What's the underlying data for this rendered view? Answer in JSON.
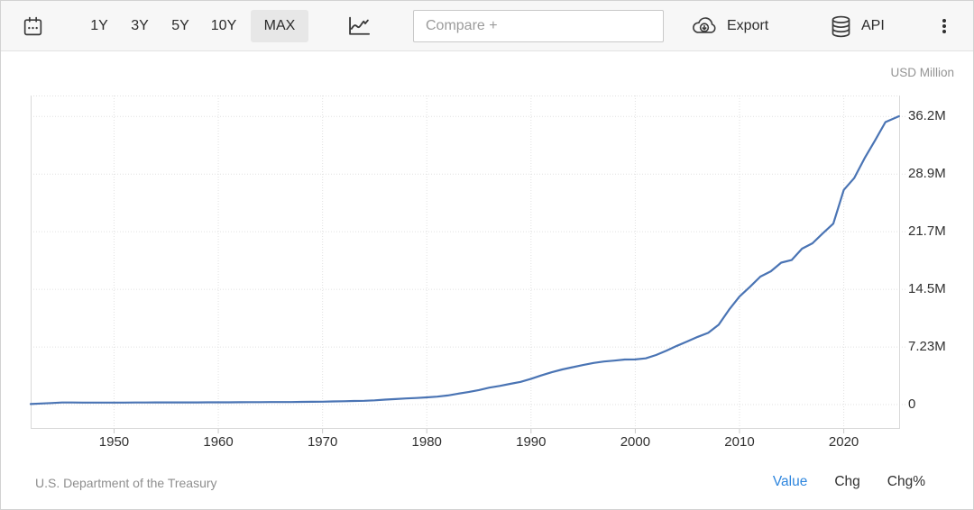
{
  "toolbar": {
    "ranges": [
      {
        "label": "1Y",
        "active": false
      },
      {
        "label": "3Y",
        "active": false
      },
      {
        "label": "5Y",
        "active": false
      },
      {
        "label": "10Y",
        "active": false
      },
      {
        "label": "MAX",
        "active": true
      }
    ],
    "compare_placeholder": "Compare +",
    "export_label": "Export",
    "api_label": "API"
  },
  "footer": {
    "source": "U.S. Department of the Treasury",
    "links": [
      {
        "label": "Value",
        "active": true
      },
      {
        "label": "Chg",
        "active": false
      },
      {
        "label": "Chg%",
        "active": false
      }
    ]
  },
  "chart_data": {
    "type": "line",
    "unit": "USD Million",
    "source": "U.S. Department of the Treasury",
    "line_color": "#4a74b4",
    "grid": "dotted",
    "grid_color": "#e1e1e1",
    "axis_color": "#d9d9d9",
    "tick_color": "#c9c9c9",
    "legend_position": "none",
    "xlim": [
      1942,
      2025.4
    ],
    "ylim": [
      -3050000,
      38800000
    ],
    "xticks": [
      {
        "v": 1950,
        "label": "1950"
      },
      {
        "v": 1960,
        "label": "1960"
      },
      {
        "v": 1970,
        "label": "1970"
      },
      {
        "v": 1980,
        "label": "1980"
      },
      {
        "v": 1990,
        "label": "1990"
      },
      {
        "v": 2000,
        "label": "2000"
      },
      {
        "v": 2010,
        "label": "2010"
      },
      {
        "v": 2020,
        "label": "2020"
      }
    ],
    "yticks": [
      {
        "v": 0,
        "label": "0"
      },
      {
        "v": 7230000,
        "label": "7.23M"
      },
      {
        "v": 14470000,
        "label": "14.5M"
      },
      {
        "v": 21700000,
        "label": "21.7M"
      },
      {
        "v": 28930000,
        "label": "28.9M"
      },
      {
        "v": 36170000,
        "label": "36.2M"
      }
    ],
    "series": [
      [
        1942,
        72400
      ],
      [
        1943,
        136700
      ],
      [
        1944,
        201000
      ],
      [
        1945,
        258700
      ],
      [
        1946,
        269400
      ],
      [
        1947,
        258300
      ],
      [
        1948,
        252300
      ],
      [
        1949,
        252800
      ],
      [
        1950,
        257400
      ],
      [
        1951,
        255200
      ],
      [
        1952,
        259100
      ],
      [
        1953,
        266000
      ],
      [
        1954,
        271300
      ],
      [
        1955,
        274400
      ],
      [
        1956,
        272800
      ],
      [
        1957,
        270500
      ],
      [
        1958,
        276300
      ],
      [
        1959,
        284700
      ],
      [
        1960,
        286300
      ],
      [
        1961,
        289000
      ],
      [
        1962,
        298200
      ],
      [
        1963,
        305900
      ],
      [
        1964,
        311700
      ],
      [
        1965,
        317300
      ],
      [
        1966,
        319900
      ],
      [
        1967,
        326200
      ],
      [
        1968,
        347600
      ],
      [
        1969,
        353700
      ],
      [
        1970,
        370900
      ],
      [
        1971,
        398100
      ],
      [
        1972,
        427300
      ],
      [
        1973,
        458100
      ],
      [
        1974,
        475100
      ],
      [
        1975,
        533200
      ],
      [
        1976,
        620400
      ],
      [
        1977,
        698800
      ],
      [
        1978,
        771500
      ],
      [
        1979,
        826500
      ],
      [
        1980,
        907700
      ],
      [
        1981,
        997900
      ],
      [
        1982,
        1142000
      ],
      [
        1983,
        1377200
      ],
      [
        1984,
        1572300
      ],
      [
        1985,
        1823100
      ],
      [
        1986,
        2125300
      ],
      [
        1987,
        2350300
      ],
      [
        1988,
        2602300
      ],
      [
        1989,
        2857400
      ],
      [
        1990,
        3233300
      ],
      [
        1991,
        3665300
      ],
      [
        1992,
        4064600
      ],
      [
        1993,
        4411500
      ],
      [
        1994,
        4692800
      ],
      [
        1995,
        4974000
      ],
      [
        1996,
        5224800
      ],
      [
        1997,
        5413100
      ],
      [
        1998,
        5526200
      ],
      [
        1999,
        5656300
      ],
      [
        2000,
        5674200
      ],
      [
        2001,
        5807500
      ],
      [
        2002,
        6228200
      ],
      [
        2003,
        6783200
      ],
      [
        2004,
        7379100
      ],
      [
        2005,
        7932700
      ],
      [
        2006,
        8507000
      ],
      [
        2007,
        9007700
      ],
      [
        2008,
        10024700
      ],
      [
        2009,
        11909800
      ],
      [
        2010,
        13561600
      ],
      [
        2011,
        14790300
      ],
      [
        2012,
        16066200
      ],
      [
        2013,
        16738200
      ],
      [
        2014,
        17824100
      ],
      [
        2015,
        18150600
      ],
      [
        2016,
        19573400
      ],
      [
        2017,
        20244900
      ],
      [
        2018,
        21516100
      ],
      [
        2019,
        22719400
      ],
      [
        2020,
        26945400
      ],
      [
        2021,
        28428900
      ],
      [
        2022,
        30928900
      ],
      [
        2023,
        33167300
      ],
      [
        2024,
        35464700
      ],
      [
        2025.3,
        36200000
      ]
    ]
  }
}
